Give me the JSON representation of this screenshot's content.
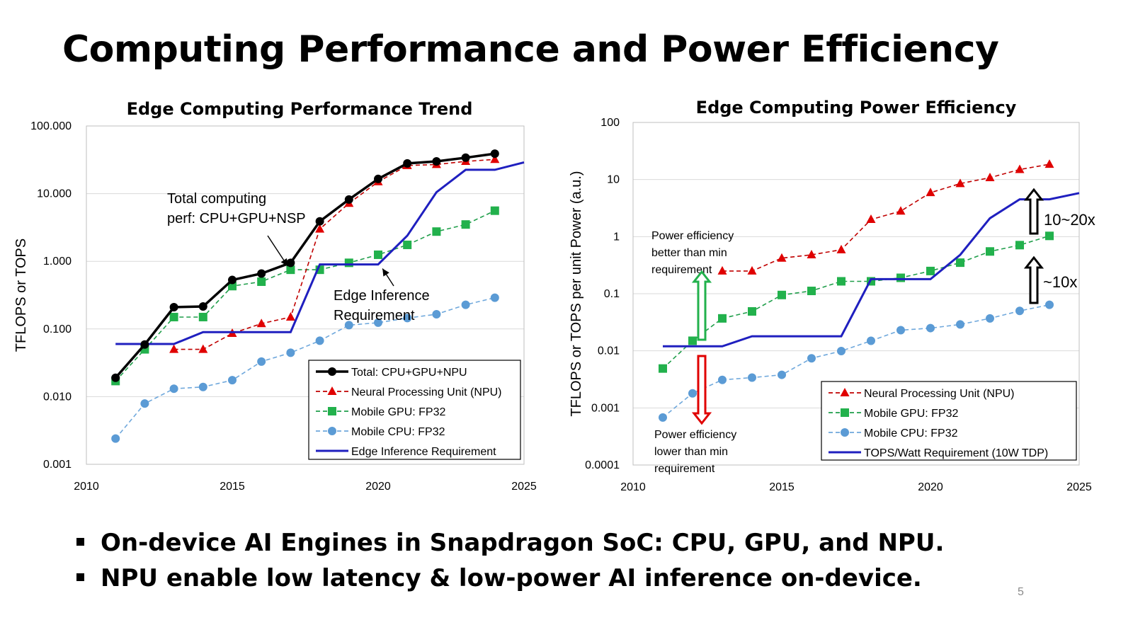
{
  "slide": {
    "title": "Computing Performance and Power Efficiency",
    "bullets": [
      "On-device AI Engines in Snapdragon SoC: CPU, GPU, and NPU.",
      "NPU enable low latency & low-power AI inference on-device."
    ],
    "page_number": "5"
  },
  "colors": {
    "total": "#000000",
    "npu": "#c00000",
    "npu_marker": "#e00000",
    "gpu": "#1f9e4a",
    "gpu_marker": "#22b14c",
    "cpu": "#6fa8dc",
    "cpu_marker": "#5b9bd5",
    "requirement": "#1f1fbf",
    "arrow_up": "#22b14c",
    "arrow_down": "#e00000"
  },
  "chart_data": [
    {
      "type": "line",
      "title": "Edge Computing Performance Trend",
      "ylabel": "TFLOPS or TOPS",
      "xlabel": "",
      "xlim": [
        2010,
        2025
      ],
      "ylim": [
        0.001,
        100
      ],
      "y_scale": "log",
      "x_ticks": [
        "2010",
        "2015",
        "2020",
        "2025"
      ],
      "y_ticks": [
        "0.001",
        "0.010",
        "0.100",
        "1.000",
        "10.000",
        "100.000"
      ],
      "grid": "horizontal",
      "legend_position": "bottom-right",
      "series": [
        {
          "name": "Total: CPU+GPU+NPU",
          "key": "total",
          "style": "solid-circle",
          "x": [
            2011,
            2012,
            2013,
            2014,
            2015,
            2016,
            2017,
            2018,
            2019,
            2020,
            2021,
            2022,
            2023,
            2024
          ],
          "y": [
            0.019,
            0.059,
            0.21,
            0.215,
            0.53,
            0.66,
            0.95,
            3.9,
            8.2,
            16.5,
            28,
            30,
            34,
            39
          ]
        },
        {
          "name": "Neural Processing Unit (NPU)",
          "key": "npu",
          "style": "dashed-triangle",
          "x": [
            2013,
            2014,
            2015,
            2016,
            2017,
            2018,
            2019,
            2020,
            2021,
            2022,
            2023,
            2024
          ],
          "y": [
            0.05,
            0.05,
            0.086,
            0.12,
            0.15,
            3.0,
            7.2,
            15,
            26,
            27,
            30,
            32
          ]
        },
        {
          "name": "Mobile GPU: FP32",
          "key": "gpu",
          "style": "dashed-square",
          "x": [
            2011,
            2012,
            2013,
            2014,
            2015,
            2016,
            2017,
            2018,
            2019,
            2020,
            2021,
            2022,
            2023,
            2024
          ],
          "y": [
            0.017,
            0.05,
            0.15,
            0.15,
            0.43,
            0.5,
            0.75,
            0.75,
            0.95,
            1.25,
            1.75,
            2.75,
            3.5,
            5.6
          ]
        },
        {
          "name": "Mobile CPU: FP32",
          "key": "cpu",
          "style": "dashed-circle",
          "x": [
            2011,
            2012,
            2013,
            2014,
            2015,
            2016,
            2017,
            2018,
            2019,
            2020,
            2021,
            2022,
            2023,
            2024
          ],
          "y": [
            0.0024,
            0.0079,
            0.0131,
            0.0139,
            0.0175,
            0.033,
            0.0445,
            0.067,
            0.114,
            0.124,
            0.145,
            0.165,
            0.228,
            0.29
          ]
        },
        {
          "name": "Edge Inference Requirement",
          "key": "requirement",
          "style": "solid",
          "x": [
            2011,
            2013,
            2014,
            2017,
            2018,
            2020,
            2021,
            2022,
            2023,
            2024,
            2025
          ],
          "y": [
            0.06,
            0.06,
            0.09,
            0.09,
            0.9,
            0.9,
            2.4,
            10.5,
            22.5,
            22.5,
            29
          ]
        }
      ],
      "annotations": [
        {
          "text_lines": [
            "Total computing",
            "perf: CPU+GPU+NSP"
          ]
        },
        {
          "text_lines": [
            "Edge Inference",
            "Requirement"
          ]
        }
      ]
    },
    {
      "type": "line",
      "title": "Edge Computing Power Efficiency",
      "ylabel": "TFLOPS or TOPS per unit Power (a.u.)",
      "xlabel": "",
      "xlim": [
        2010,
        2025
      ],
      "ylim": [
        0.0001,
        100
      ],
      "y_scale": "log",
      "x_ticks": [
        "2010",
        "2015",
        "2020",
        "2025"
      ],
      "y_ticks": [
        "0.0001",
        "0.001",
        "0.01",
        "0.1",
        "1",
        "10",
        "100"
      ],
      "grid": "horizontal",
      "legend_position": "bottom-right",
      "series": [
        {
          "name": "Neural Processing Unit (NPU)",
          "key": "npu",
          "style": "dashed-triangle",
          "x": [
            2013,
            2014,
            2015,
            2016,
            2017,
            2018,
            2019,
            2020,
            2021,
            2022,
            2023,
            2024
          ],
          "y": [
            0.25,
            0.25,
            0.42,
            0.48,
            0.59,
            2.0,
            2.8,
            5.9,
            8.5,
            10.8,
            15,
            18.5
          ]
        },
        {
          "name": "Mobile GPU: FP32",
          "key": "gpu",
          "style": "dashed-square",
          "x": [
            2011,
            2012,
            2013,
            2014,
            2015,
            2016,
            2017,
            2018,
            2019,
            2020,
            2021,
            2022,
            2023,
            2024
          ],
          "y": [
            0.0049,
            0.015,
            0.037,
            0.049,
            0.095,
            0.112,
            0.165,
            0.165,
            0.19,
            0.25,
            0.35,
            0.55,
            0.71,
            1.03
          ]
        },
        {
          "name": "Mobile CPU: FP32",
          "key": "cpu",
          "style": "dashed-circle",
          "x": [
            2011,
            2012,
            2013,
            2014,
            2015,
            2016,
            2017,
            2018,
            2019,
            2020,
            2021,
            2022,
            2023,
            2024
          ],
          "y": [
            0.00068,
            0.0018,
            0.0031,
            0.0034,
            0.0038,
            0.0074,
            0.0099,
            0.015,
            0.023,
            0.025,
            0.029,
            0.037,
            0.05,
            0.064
          ]
        },
        {
          "name": "TOPS/Watt Requirement (10W TDP)",
          "key": "requirement",
          "style": "solid",
          "x": [
            2011,
            2013,
            2014,
            2017,
            2018,
            2020,
            2021,
            2022,
            2023,
            2024,
            2025
          ],
          "y": [
            0.012,
            0.012,
            0.018,
            0.018,
            0.18,
            0.18,
            0.48,
            2.1,
            4.5,
            4.5,
            5.8
          ]
        }
      ],
      "annotations": [
        {
          "text_lines": [
            "Power efficiency",
            "better than min",
            "requirement"
          ]
        },
        {
          "text_lines": [
            "Power efficiency",
            "lower than min",
            "requirement"
          ]
        },
        {
          "text": "10~20x"
        },
        {
          "text": "~10x"
        }
      ]
    }
  ]
}
